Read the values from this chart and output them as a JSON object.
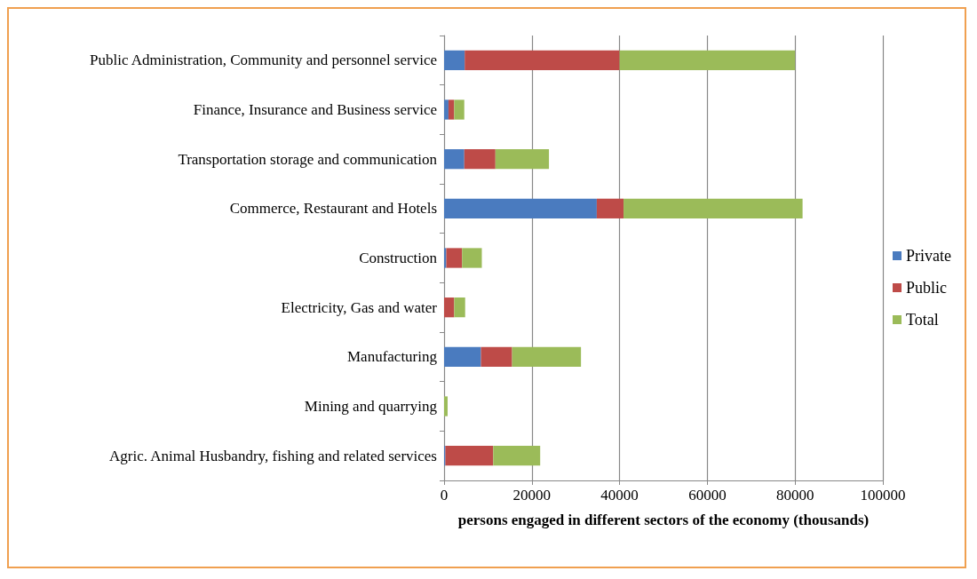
{
  "chart_data": {
    "type": "bar",
    "orientation": "horizontal",
    "stacked": true,
    "xlabel": "persons engaged in different sectors of the economy (thousands)",
    "categories": [
      "Public Administration, Community and personnel service",
      "Finance, Insurance and Business service",
      "Transportation storage and communication",
      "Commerce, Restaurant and Hotels",
      "Construction",
      "Electricity, Gas and water",
      "Manufacturing",
      "Mining and quarrying",
      "Agric. Animal Husbandry, fishing and related services"
    ],
    "series": [
      {
        "name": "Private",
        "color": "#4a7bbf",
        "values": [
          4700,
          1000,
          4600,
          34800,
          500,
          0,
          8400,
          0,
          300
        ]
      },
      {
        "name": "Public",
        "color": "#be4b48",
        "values": [
          35300,
          1300,
          7100,
          6100,
          3600,
          2300,
          7100,
          0,
          10900
        ]
      },
      {
        "name": "Total",
        "color": "#9bbb59",
        "values": [
          40000,
          2300,
          12200,
          40800,
          4500,
          2500,
          15700,
          800,
          10700
        ]
      }
    ],
    "xlim": [
      0,
      100000
    ],
    "xticks": [
      0,
      20000,
      40000,
      60000,
      80000,
      100000
    ],
    "grid": "x",
    "legend": "right"
  }
}
